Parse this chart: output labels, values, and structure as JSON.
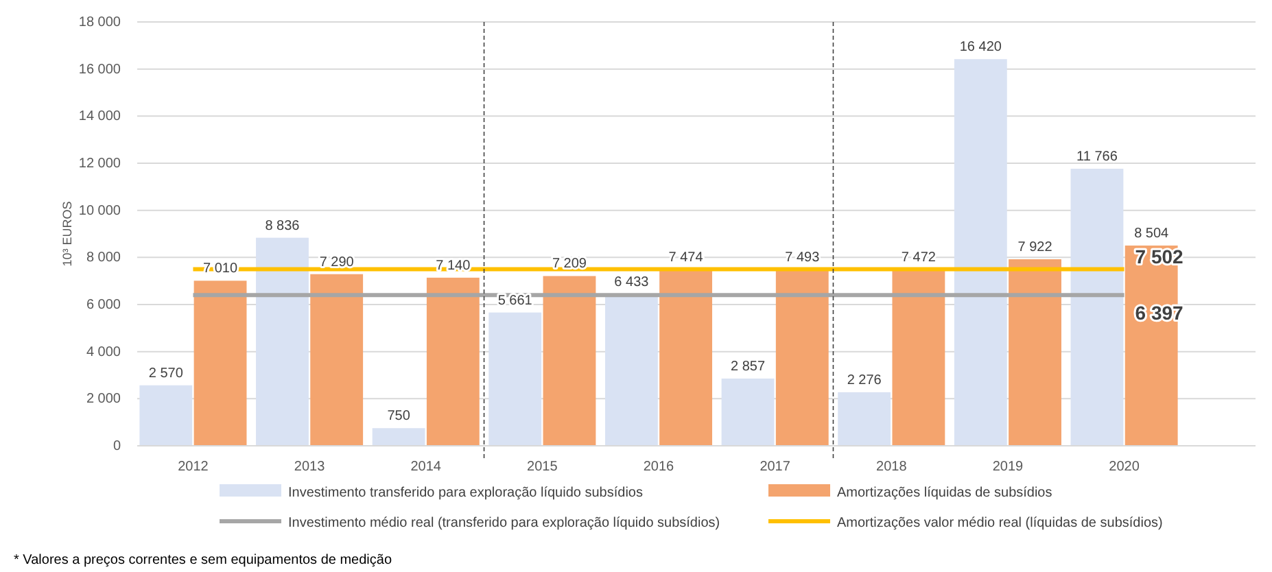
{
  "chart_data": {
    "type": "bar",
    "ylabel": "10³ EUROS",
    "categories": [
      "2012",
      "2013",
      "2014",
      "2015",
      "2016",
      "2017",
      "2018",
      "2019",
      "2020"
    ],
    "series": [
      {
        "name": "Investimento transferido para exploração líquido subsídios",
        "color": "#d9e2f3",
        "values": [
          2570,
          8836,
          750,
          5661,
          6433,
          2857,
          2276,
          16420,
          11766
        ],
        "value_labels": [
          "2 570",
          "8 836",
          "750",
          "5 661",
          "6 433",
          "2 857",
          "2 276",
          "16 420",
          "11 766"
        ]
      },
      {
        "name": "Amortizações líquidas de subsídios",
        "color": "#f4a46e",
        "values": [
          7010,
          7290,
          7140,
          7209,
          7474,
          7493,
          7472,
          7922,
          8504
        ],
        "value_labels": [
          "7 010",
          "7 290",
          "7 140",
          "7 209",
          "7 474",
          "7 493",
          "7 472",
          "7 922",
          "8 504"
        ]
      },
      {
        "name": "Investimento médio real (transferido para exploração líquido subsídios)",
        "type": "line",
        "color": "#a6a6a6",
        "values": [
          6397,
          6397,
          6397,
          6397,
          6397,
          6397,
          6397,
          6397,
          6397
        ],
        "value_labels": [
          null,
          null,
          null,
          null,
          null,
          null,
          null,
          null,
          "6 397"
        ]
      },
      {
        "name": "Amortizações valor médio real (líquidas de subsídios)",
        "type": "line",
        "color": "#ffc000",
        "values": [
          7502,
          7502,
          7502,
          7502,
          7502,
          7502,
          7502,
          7502,
          7502
        ],
        "value_labels": [
          null,
          null,
          null,
          null,
          null,
          null,
          null,
          null,
          "7 502"
        ]
      }
    ],
    "ylim": [
      0,
      18000
    ],
    "yticks": [
      0,
      {
        "value": 2000,
        "label": "2 000"
      },
      {
        "value": 4000,
        "label": "4 000"
      },
      {
        "value": 6000,
        "label": "6 000"
      },
      {
        "value": 8000,
        "label": "8 000"
      },
      {
        "value": 10000,
        "label": "10 000"
      },
      {
        "value": 12000,
        "label": "12 000"
      },
      {
        "value": 14000,
        "label": "14 000"
      },
      {
        "value": 16000,
        "label": "16 000"
      },
      {
        "value": 18000,
        "label": "18 000"
      }
    ],
    "grid": "y",
    "legend": "bottom",
    "annotations": [
      "* Valores a preços correntes e sem equipamentos de medição"
    ]
  }
}
